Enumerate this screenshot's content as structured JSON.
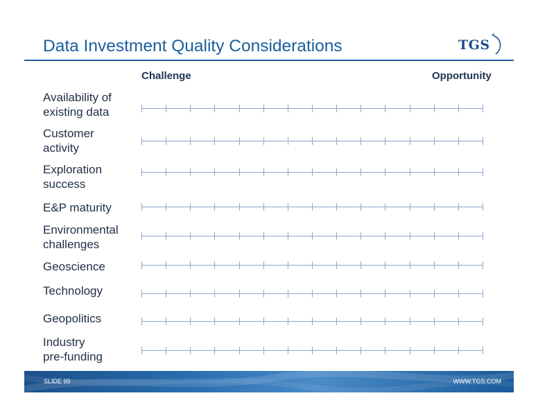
{
  "title": "Data Investment Quality Considerations",
  "logo": {
    "text": "TGS"
  },
  "scale_headers": {
    "left": "Challenge",
    "right": "Opportunity"
  },
  "rows": [
    {
      "label": "Availability of\nexisting data"
    },
    {
      "label": "Customer\nactivity"
    },
    {
      "label": "Exploration\nsuccess"
    },
    {
      "label": "E&P maturity"
    },
    {
      "label": "Environmental\nchallenges"
    },
    {
      "label": "Geoscience"
    },
    {
      "label": "Technology"
    },
    {
      "label": "Geopolitics"
    },
    {
      "label": "Industry\npre-funding"
    }
  ],
  "scale_tick_count": 15,
  "footer": {
    "slide": "SLIDE 99",
    "url": "WWW.TGS.COM"
  },
  "colors": {
    "accent": "#1b5e9e",
    "footer": "#2a6fb0",
    "scale": "#8ea6c8"
  }
}
